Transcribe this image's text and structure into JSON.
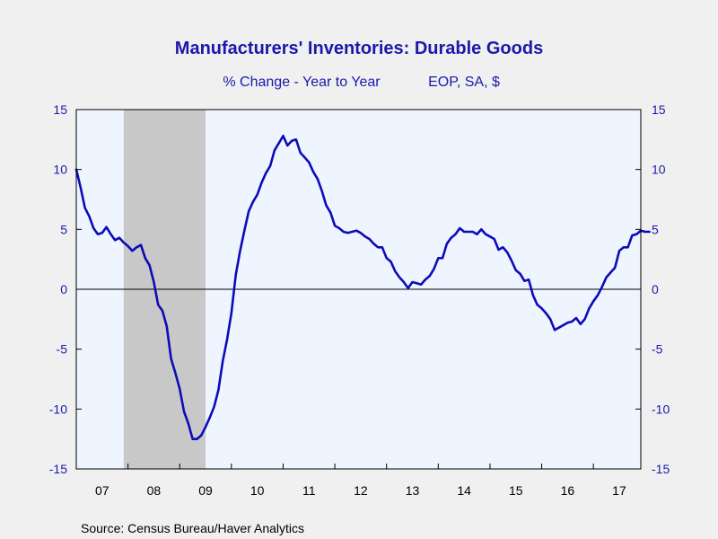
{
  "chart_data": {
    "type": "line",
    "title": "Manufacturers' Inventories: Durable Goods",
    "subtitle": "% Change - Year to Year",
    "subtitle_right": "EOP, SA, $",
    "source": "Source:  Census Bureau/Haver Analytics",
    "x_tick_labels": [
      "07",
      "08",
      "09",
      "10",
      "11",
      "12",
      "13",
      "14",
      "15",
      "16",
      "17"
    ],
    "y_tick_labels": [
      "15",
      "10",
      "5",
      "0",
      "-5",
      "-10",
      "-15"
    ],
    "ylim": [
      -15,
      15
    ],
    "xlim": [
      2007.0,
      2017.917
    ],
    "recession_band": [
      2007.917,
      2009.5
    ],
    "zero_line": true,
    "colors": {
      "line": "#0c0cb8",
      "plot_background": "#eef5ff",
      "recession": "#c8c8c8",
      "text": "#1a1aaa"
    },
    "series": [
      {
        "x_start": 2007.0,
        "x_step": 0.0833333,
        "values": [
          10.0,
          8.5,
          6.8,
          6.1,
          5.1,
          4.6,
          4.7,
          5.2,
          4.6,
          4.1,
          4.3,
          3.9,
          3.6,
          3.2,
          3.5,
          3.7,
          2.6,
          2.0,
          0.6,
          -1.3,
          -1.8,
          -3.1,
          -5.8,
          -7.0,
          -8.3,
          -10.2,
          -11.2,
          -12.5,
          -12.5,
          -12.2,
          -11.5,
          -10.7,
          -9.8,
          -8.4,
          -6.0,
          -4.2,
          -2.0,
          1.2,
          3.2,
          4.9,
          6.5,
          7.3,
          7.9,
          8.9,
          9.7,
          10.3,
          11.6,
          12.2,
          12.8,
          12.0,
          12.4,
          12.5,
          11.4,
          11.0,
          10.6,
          9.8,
          9.2,
          8.2,
          7.0,
          6.4,
          5.3,
          5.1,
          4.8,
          4.7,
          4.8,
          4.9,
          4.7,
          4.4,
          4.2,
          3.8,
          3.5,
          3.5,
          2.6,
          2.3,
          1.5,
          1.0,
          0.6,
          0.1,
          0.6,
          0.5,
          0.4,
          0.8,
          1.1,
          1.7,
          2.6,
          2.6,
          3.8,
          4.3,
          4.6,
          5.1,
          4.8,
          4.8,
          4.8,
          4.6,
          5.0,
          4.6,
          4.4,
          4.2,
          3.3,
          3.5,
          3.1,
          2.4,
          1.6,
          1.3,
          0.7,
          0.8,
          -0.5,
          -1.3,
          -1.6,
          -2.0,
          -2.5,
          -3.4,
          -3.2,
          -3.0,
          -2.8,
          -2.7,
          -2.4,
          -2.9,
          -2.5,
          -1.6,
          -1.0,
          -0.5,
          0.2,
          1.0,
          1.4,
          1.8,
          3.2,
          3.5,
          3.5,
          4.5,
          4.6,
          4.9,
          4.8,
          4.8
        ]
      }
    ]
  }
}
